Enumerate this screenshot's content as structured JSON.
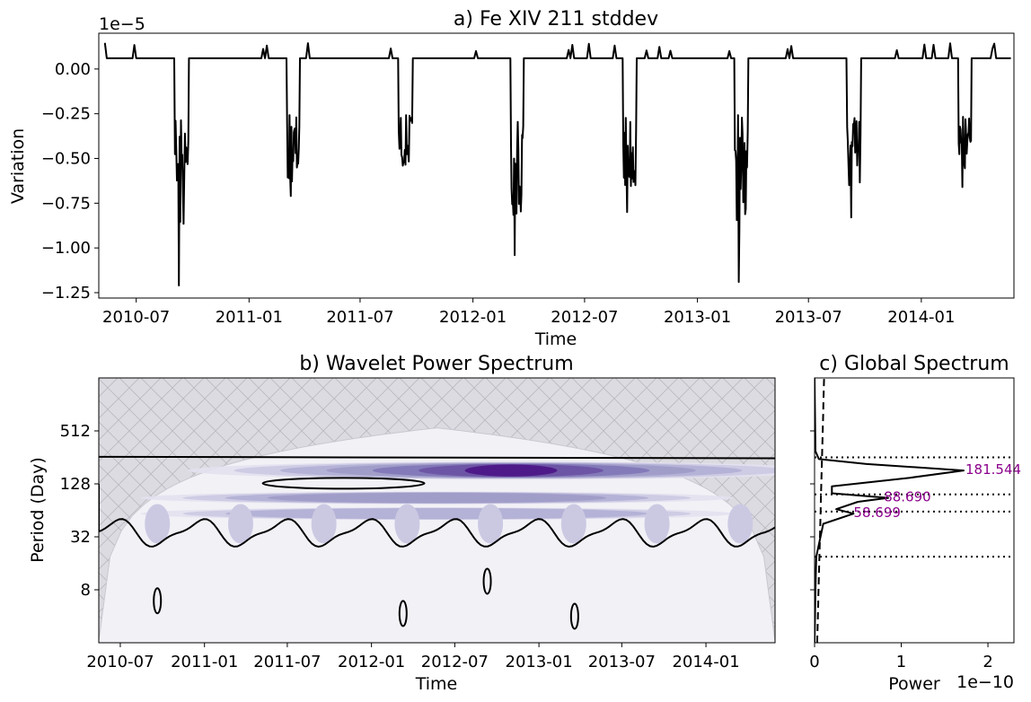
{
  "chart_data": [
    {
      "id": "a",
      "type": "line",
      "title": "a) Fe XIV 211 stddev",
      "xlabel": "Time",
      "ylabel": "Variation",
      "y_offset_label": "1e−5",
      "xlim": [
        "2010-05-01",
        "2014-06-01"
      ],
      "ylim": [
        -1.28,
        0.2
      ],
      "xticks": [
        "2010-07",
        "2011-01",
        "2011-07",
        "2012-01",
        "2012-07",
        "2013-01",
        "2013-07",
        "2014-01"
      ],
      "yticks": [
        "0.00",
        "−0.25",
        "−0.50",
        "−0.75",
        "−1.00",
        "−1.25"
      ],
      "ytick_values": [
        0,
        -0.25,
        -0.5,
        -0.75,
        -1.0,
        -1.25
      ],
      "baseline": 0.06,
      "eclipse_seasons": [
        {
          "start": "2010-09-01",
          "end": "2010-09-25",
          "min": -1.21
        },
        {
          "start": "2011-03-03",
          "end": "2011-03-25",
          "min": -0.71
        },
        {
          "start": "2011-09-01",
          "end": "2011-09-25",
          "min": -0.54
        },
        {
          "start": "2012-03-02",
          "end": "2012-03-24",
          "min": -1.04
        },
        {
          "start": "2012-09-01",
          "end": "2012-09-24",
          "min": -0.8
        },
        {
          "start": "2013-03-02",
          "end": "2013-03-25",
          "min": -1.19
        },
        {
          "start": "2013-09-01",
          "end": "2013-09-25",
          "min": -0.83
        },
        {
          "start": "2014-03-02",
          "end": "2014-03-24",
          "min": -0.66
        }
      ],
      "line_color": "#000000"
    },
    {
      "id": "b",
      "type": "heatmap",
      "title": "b) Wavelet Power Spectrum",
      "xlabel": "Time",
      "ylabel": "Period (Day)",
      "xlim": [
        "2010-05-15",
        "2014-06-01"
      ],
      "ylim_log2": [
        1,
        11
      ],
      "xticks": [
        "2010-07",
        "2011-01",
        "2011-07",
        "2012-01",
        "2012-07",
        "2013-01",
        "2013-07",
        "2014-01"
      ],
      "yticks": [
        "512",
        "128",
        "32",
        "8"
      ],
      "ytick_values": [
        512,
        128,
        32,
        8
      ],
      "bands": [
        {
          "period": 181.544,
          "strength": 1.0
        },
        {
          "period": 88.69,
          "strength": 0.55
        },
        {
          "period": 58.699,
          "strength": 0.4
        }
      ],
      "colormap": "Purples",
      "cone_color": "#dcdbe1"
    },
    {
      "id": "c",
      "type": "line",
      "title": "c) Global Spectrum",
      "xlabel": "Power",
      "x_offset_label": "1e−10",
      "xlim": [
        0,
        2.3
      ],
      "xticks": [
        "0",
        "1",
        "2"
      ],
      "xtick_values": [
        0,
        1,
        2
      ],
      "peaks": [
        {
          "label": "181.544",
          "period": 181.544,
          "power": 1.72
        },
        {
          "label": "88.690",
          "period": 88.69,
          "power": 0.85
        },
        {
          "label": "58.699",
          "period": 58.699,
          "power": 0.45
        }
      ],
      "dotted_periods": [
        256,
        97,
        62,
        19
      ],
      "annotation_color": "#8b008b"
    }
  ]
}
